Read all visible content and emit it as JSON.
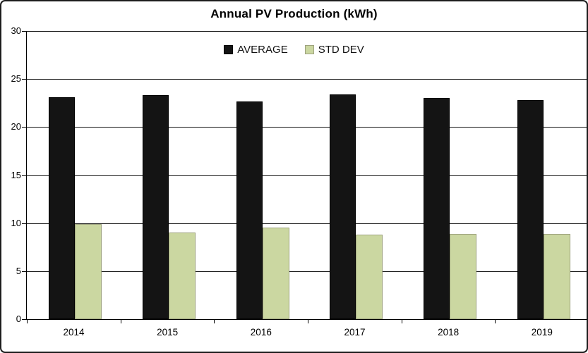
{
  "title": "Annual PV Production (kWh)",
  "legend": {
    "items": [
      {
        "label": "AVERAGE",
        "swatch_color": "#141414",
        "swatch_border": "#000000"
      },
      {
        "label": "STD DEV",
        "swatch_color": "#cbd7a1",
        "swatch_border": "#9da27e"
      }
    ]
  },
  "chart_data": {
    "type": "bar",
    "title": "Annual PV Production (kWh)",
    "categories": [
      "2014",
      "2015",
      "2016",
      "2017",
      "2018",
      "2019"
    ],
    "series": [
      {
        "name": "AVERAGE",
        "color": "#141414",
        "border_color": "#000000",
        "values": [
          23.1,
          23.3,
          22.7,
          23.4,
          23.0,
          22.8
        ]
      },
      {
        "name": "STD DEV",
        "color": "#cbd7a1",
        "border_color": "#9da27e",
        "values": [
          9.9,
          9.0,
          9.5,
          8.8,
          8.9,
          8.9
        ]
      }
    ],
    "xlabel": "",
    "ylabel": "",
    "ylim": [
      0,
      30
    ],
    "yticks": [
      0,
      5,
      10,
      15,
      20,
      25,
      30
    ],
    "grid": true,
    "gridline_color": "#141414",
    "legend_position": "top-center",
    "background_color": "#ffffff"
  }
}
